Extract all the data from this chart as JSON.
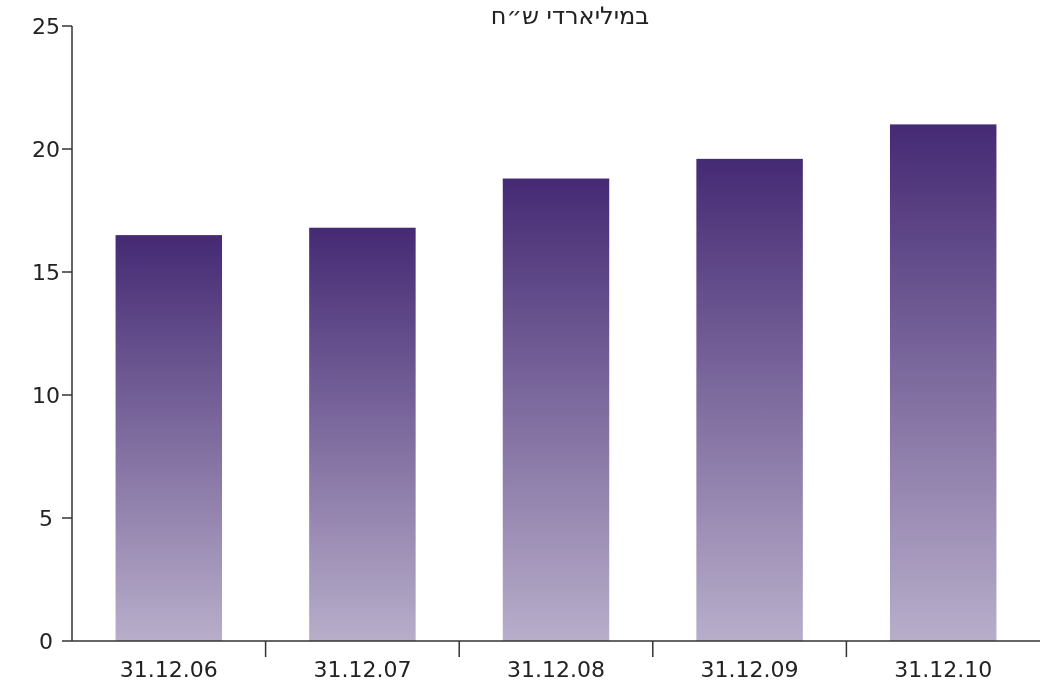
{
  "chart_data": {
    "type": "bar",
    "title": "במיליארדי ש״ח",
    "categories": [
      "31.12.06",
      "31.12.07",
      "31.12.08",
      "31.12.09",
      "31.12.10"
    ],
    "values": [
      16.5,
      16.8,
      18.8,
      19.6,
      21.0
    ],
    "color": "#452a74",
    "ylim": [
      0,
      25
    ],
    "yticks": [
      0,
      5,
      10,
      15,
      20,
      25
    ]
  }
}
